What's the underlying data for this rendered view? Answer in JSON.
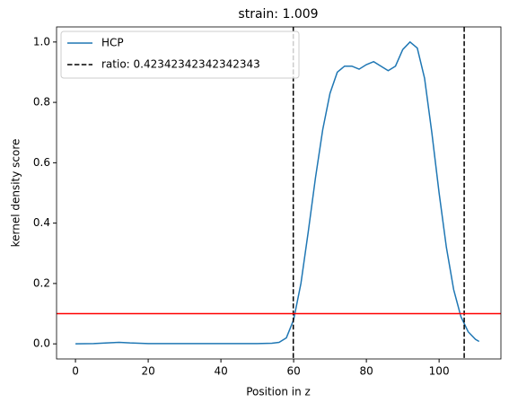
{
  "chart_data": {
    "type": "line",
    "title": "strain: 1.009",
    "xlabel": "Position in z",
    "ylabel": "kernel density score",
    "xlim": [
      -5.2,
      117
    ],
    "ylim": [
      -0.05,
      1.05
    ],
    "xticks": [
      0,
      20,
      40,
      60,
      80,
      100
    ],
    "yticks": [
      {
        "value": 0,
        "label": "0.0"
      },
      0.2,
      0.4,
      0.6,
      0.8,
      {
        "value": 1,
        "label": "1.0"
      }
    ],
    "series": [
      {
        "name": "HCP",
        "color": "#1f77b4",
        "x": [
          0,
          5,
          10,
          12,
          15,
          20,
          30,
          40,
          50,
          54,
          56,
          58,
          60,
          62,
          64,
          66,
          68,
          70,
          72,
          74,
          76,
          78,
          80,
          82,
          84,
          86,
          88,
          90,
          92,
          94,
          96,
          98,
          100,
          102,
          104,
          106,
          108,
          110,
          111
        ],
        "values": [
          0,
          0.001,
          0.004,
          0.005,
          0.003,
          0.001,
          0.001,
          0.001,
          0.001,
          0.002,
          0.005,
          0.02,
          0.08,
          0.2,
          0.37,
          0.55,
          0.71,
          0.83,
          0.9,
          0.92,
          0.92,
          0.91,
          0.925,
          0.935,
          0.92,
          0.905,
          0.92,
          0.975,
          1.0,
          0.98,
          0.88,
          0.7,
          0.5,
          0.32,
          0.18,
          0.09,
          0.04,
          0.015,
          0.008
        ]
      }
    ],
    "vlines": {
      "name": "ratio: 0.42342342342342343",
      "color": "#000000",
      "values": [
        59.9,
        106.9
      ]
    },
    "hline": {
      "value": 0.1,
      "color": "#ff0000"
    },
    "legend": "upper left"
  }
}
